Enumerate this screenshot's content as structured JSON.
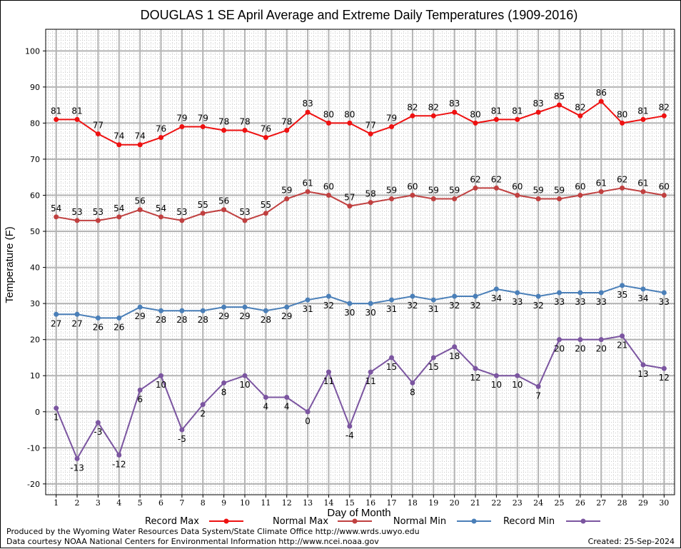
{
  "chart_data": {
    "type": "line",
    "title": "DOUGLAS 1 SE April Average and Extreme Daily Temperatures (1909-2016)",
    "xlabel": "Day of Month",
    "ylabel": "Temperature (F)",
    "ylim": [
      -23,
      106
    ],
    "yticks": [
      -20,
      -10,
      0,
      10,
      20,
      30,
      40,
      50,
      60,
      70,
      80,
      90,
      100
    ],
    "x": [
      1,
      2,
      3,
      4,
      5,
      6,
      7,
      8,
      9,
      10,
      11,
      12,
      13,
      14,
      15,
      16,
      17,
      18,
      19,
      20,
      21,
      22,
      23,
      24,
      25,
      26,
      27,
      28,
      29,
      30
    ],
    "grid": true,
    "legend_position": "bottom",
    "series": [
      {
        "name": "Record Max",
        "color": "#ee1111",
        "label_position": "above",
        "values": [
          81,
          81,
          77,
          74,
          74,
          76,
          79,
          79,
          78,
          78,
          76,
          78,
          83,
          80,
          80,
          77,
          79,
          82,
          82,
          83,
          80,
          81,
          81,
          83,
          85,
          82,
          86,
          80,
          81,
          82
        ]
      },
      {
        "name": "Normal Max",
        "color": "#c04040",
        "label_position": "above",
        "values": [
          54,
          53,
          53,
          54,
          56,
          54,
          53,
          55,
          56,
          53,
          55,
          59,
          61,
          60,
          57,
          58,
          59,
          60,
          59,
          59,
          62,
          62,
          60,
          59,
          59,
          60,
          61,
          62,
          61,
          60
        ]
      },
      {
        "name": "Normal Min",
        "color": "#4a7fb8",
        "label_position": "below",
        "values": [
          27,
          27,
          26,
          26,
          29,
          28,
          28,
          28,
          29,
          29,
          28,
          29,
          31,
          32,
          30,
          30,
          31,
          32,
          31,
          32,
          32,
          34,
          33,
          32,
          33,
          33,
          33,
          35,
          34,
          33
        ]
      },
      {
        "name": "Record Min",
        "color": "#7b55a0",
        "label_position": "below",
        "values": [
          1,
          -13,
          -3,
          -12,
          6,
          10,
          -5,
          2,
          8,
          10,
          4,
          4,
          0,
          11,
          -4,
          11,
          15,
          8,
          15,
          18,
          12,
          10,
          10,
          7,
          20,
          20,
          20,
          21,
          13,
          12
        ]
      }
    ]
  },
  "footer": {
    "produced_by": "Produced by the Wyoming Water Resources Data System/State Climate Office http://www.wrds.uwyo.edu",
    "courtesy": "Data courtesy NOAA National Centers for Environmental Information http://www.ncei.noaa.gov",
    "created": "Created:  25-Sep-2024"
  }
}
